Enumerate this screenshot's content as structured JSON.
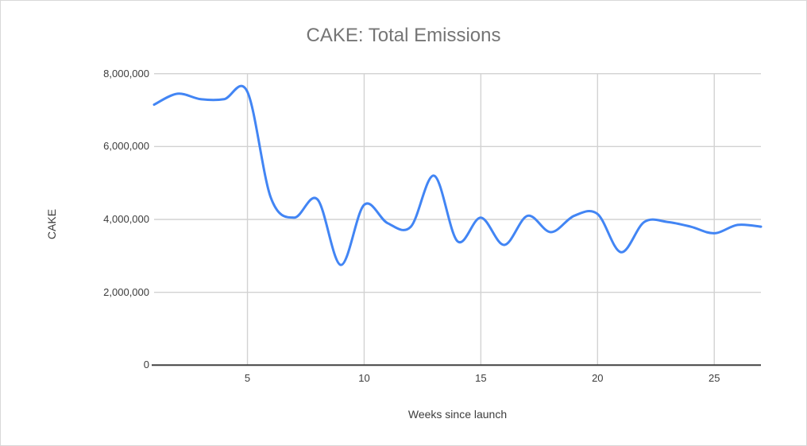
{
  "frame": {
    "background": "#ffffff",
    "border_color": "#d9d9d9"
  },
  "chart_data": {
    "type": "line",
    "title": "CAKE: Total Emissions",
    "xlabel": "Weeks since launch",
    "ylabel": "CAKE",
    "smooth": true,
    "grid": true,
    "legend": "none",
    "line_color": "#4285f4",
    "line_width": 3,
    "title_color": "#757575",
    "axis_text_color": "#3c3c3c",
    "gridline_color": "#d2d2d2",
    "axis_line_color": "#424242",
    "xlim": [
      1,
      27
    ],
    "ylim": [
      0,
      8000000
    ],
    "xticks": [
      5,
      10,
      15,
      20,
      25
    ],
    "xtick_labels": [
      "5",
      "10",
      "15",
      "20",
      "25"
    ],
    "yticks": [
      0,
      2000000,
      4000000,
      6000000,
      8000000
    ],
    "ytick_labels": [
      "0",
      "2,000,000",
      "4,000,000",
      "6,000,000",
      "8,000,000"
    ],
    "x": [
      1,
      2,
      3,
      4,
      5,
      6,
      7,
      8,
      9,
      10,
      11,
      12,
      13,
      14,
      15,
      16,
      17,
      18,
      19,
      20,
      21,
      22,
      23,
      24,
      25,
      26,
      27
    ],
    "series": [
      {
        "name": "CAKE",
        "values": [
          7150000,
          7450000,
          7300000,
          7300000,
          7500000,
          4600000,
          4050000,
          4550000,
          2750000,
          4400000,
          3900000,
          3800000,
          5200000,
          3400000,
          4050000,
          3300000,
          4100000,
          3650000,
          4100000,
          4150000,
          3100000,
          3930000,
          3930000,
          3800000,
          3620000,
          3850000,
          3800000
        ]
      }
    ]
  }
}
